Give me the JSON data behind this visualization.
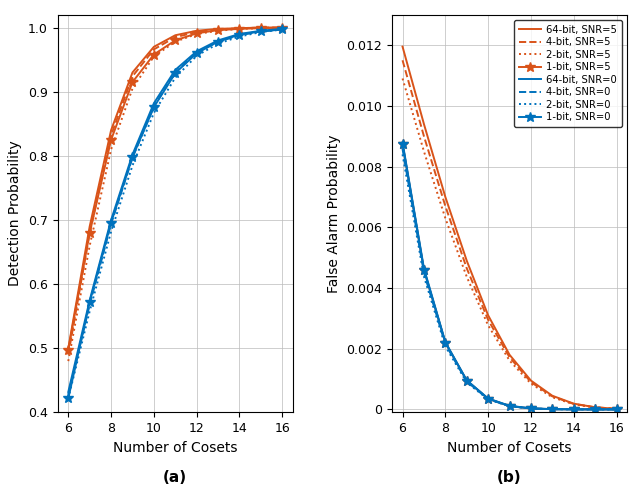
{
  "x": [
    6,
    7,
    8,
    9,
    10,
    11,
    12,
    13,
    14,
    15,
    16
  ],
  "pd_snr5_64bit": [
    0.5,
    0.69,
    0.84,
    0.93,
    0.97,
    0.988,
    0.995,
    0.998,
    0.999,
    1.0,
    1.0
  ],
  "pd_snr5_4bit": [
    0.49,
    0.68,
    0.832,
    0.924,
    0.966,
    0.985,
    0.993,
    0.997,
    0.999,
    1.0,
    1.0
  ],
  "pd_snr5_2bit": [
    0.48,
    0.66,
    0.81,
    0.905,
    0.955,
    0.978,
    0.99,
    0.995,
    0.998,
    0.999,
    1.0
  ],
  "pd_snr5_1bit": [
    0.498,
    0.68,
    0.825,
    0.915,
    0.958,
    0.98,
    0.991,
    0.996,
    0.998,
    0.999,
    1.0
  ],
  "pd_snr0_64bit": [
    0.432,
    0.575,
    0.7,
    0.802,
    0.882,
    0.934,
    0.963,
    0.98,
    0.99,
    0.995,
    0.998
  ],
  "pd_snr0_4bit": [
    0.428,
    0.568,
    0.694,
    0.797,
    0.877,
    0.93,
    0.961,
    0.978,
    0.988,
    0.994,
    0.997
  ],
  "pd_snr0_2bit": [
    0.422,
    0.558,
    0.682,
    0.785,
    0.867,
    0.922,
    0.956,
    0.975,
    0.986,
    0.993,
    0.997
  ],
  "pd_snr0_1bit": [
    0.422,
    0.572,
    0.696,
    0.798,
    0.876,
    0.929,
    0.96,
    0.978,
    0.989,
    0.994,
    0.997
  ],
  "pfa_snr5_64bit": [
    0.01195,
    0.0094,
    0.007,
    0.0049,
    0.0031,
    0.0018,
    0.00095,
    0.00045,
    0.00019,
    7e-05,
    2e-05
  ],
  "pfa_snr5_4bit": [
    0.0115,
    0.009,
    0.0067,
    0.00465,
    0.00295,
    0.00172,
    0.0009,
    0.00043,
    0.00018,
    7e-05,
    2e-05
  ],
  "pfa_snr5_2bit": [
    0.0109,
    0.0085,
    0.0063,
    0.00437,
    0.00277,
    0.00161,
    0.00085,
    0.0004,
    0.00017,
    6e-05,
    2e-05
  ],
  "pfa_snr5_1bit": [
    0.00875,
    0.0046,
    0.0022,
    0.00095,
    0.00035,
    0.00011,
    3e-05,
    8e-06,
    2e-06,
    5e-07,
    1e-07
  ],
  "pfa_snr0_64bit": [
    0.0088,
    0.00465,
    0.00222,
    0.00096,
    0.00036,
    0.00012,
    3.5e-05,
    9e-06,
    2.2e-06,
    5e-07,
    1e-07
  ],
  "pfa_snr0_4bit": [
    0.00858,
    0.0045,
    0.00215,
    0.00092,
    0.00034,
    0.00011,
    3.2e-05,
    8e-06,
    2e-06,
    5e-07,
    1e-07
  ],
  "pfa_snr0_2bit": [
    0.0084,
    0.00438,
    0.00208,
    0.00089,
    0.00033,
    0.000105,
    3e-05,
    8e-06,
    1.9e-06,
    4e-07,
    1e-07
  ],
  "pfa_snr0_1bit": [
    0.00875,
    0.0046,
    0.0022,
    0.00095,
    0.00035,
    0.00011,
    3e-05,
    8e-06,
    2e-06,
    5e-07,
    1e-07
  ],
  "color_snr5": "#D95319",
  "color_snr0": "#0072BD",
  "xlabel": "Number of Cosets",
  "ylabel_a": "Detection Probability",
  "ylabel_b": "False Alarm Probability",
  "label_a": "(a)",
  "label_b": "(b)",
  "legend_labels": [
    "64-bit, SNR=5",
    "4-bit, SNR=5",
    "2-bit, SNR=5",
    "1-bit, SNR=5",
    "64-bit, SNR=0",
    "4-bit, SNR=0",
    "2-bit, SNR=0",
    "1-bit, SNR=0"
  ],
  "xlim": [
    5.5,
    16.5
  ],
  "ylim_a": [
    0.4,
    1.02
  ],
  "ylim_b": [
    -0.0001,
    0.013
  ],
  "yticks_a": [
    0.4,
    0.5,
    0.6,
    0.7,
    0.8,
    0.9,
    1.0
  ],
  "yticks_b": [
    0.0,
    0.002,
    0.004,
    0.006,
    0.008,
    0.01,
    0.012
  ],
  "xticks": [
    6,
    8,
    10,
    12,
    14,
    16
  ]
}
